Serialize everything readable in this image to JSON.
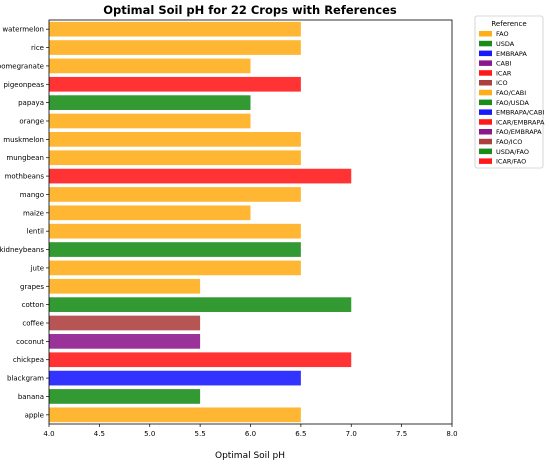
{
  "chart_data": {
    "type": "bar",
    "orientation": "horizontal",
    "title": "Optimal Soil pH for 22 Crops with References",
    "xlabel": "Optimal Soil pH",
    "ylabel": "",
    "xlim": [
      4.0,
      8.0
    ],
    "xticks": [
      "4.0",
      "4.5",
      "5.0",
      "5.5",
      "6.0",
      "6.5",
      "7.0",
      "7.5",
      "8.0"
    ],
    "grid": false,
    "legend_position": "right",
    "legend_title": "Reference",
    "legend": [
      {
        "label": "FAO",
        "color": "#FFA500"
      },
      {
        "label": "USDA",
        "color": "#008000"
      },
      {
        "label": "EMBRAPA",
        "color": "#0000FF"
      },
      {
        "label": "CABI",
        "color": "#800080"
      },
      {
        "label": "ICAR",
        "color": "#FF0000"
      },
      {
        "label": "ICO",
        "color": "#A52A2A"
      },
      {
        "label": "FAO/CABI",
        "color": "#FFA500"
      },
      {
        "label": "FAO/USDA",
        "color": "#008000"
      },
      {
        "label": "EMBRAPA/CABI",
        "color": "#0000FF"
      },
      {
        "label": "ICAR/EMBRAPA",
        "color": "#FF0000"
      },
      {
        "label": "FAO/EMBRAPA",
        "color": "#800080"
      },
      {
        "label": "FAO/ICO",
        "color": "#A52A2A"
      },
      {
        "label": "USDA/FAO",
        "color": "#008000"
      },
      {
        "label": "ICAR/FAO",
        "color": "#FF0000"
      }
    ],
    "categories": [
      "apple",
      "banana",
      "blackgram",
      "chickpea",
      "coconut",
      "coffee",
      "cotton",
      "grapes",
      "jute",
      "kidneybeans",
      "lentil",
      "maize",
      "mango",
      "mothbeans",
      "mungbean",
      "muskmelon",
      "orange",
      "papaya",
      "pigeonpeas",
      "pomegranate",
      "rice",
      "watermelon"
    ],
    "values": [
      6.5,
      5.5,
      6.5,
      7.0,
      5.5,
      5.5,
      7.0,
      5.5,
      6.5,
      6.5,
      6.5,
      6.0,
      6.5,
      7.0,
      6.5,
      6.5,
      6.0,
      6.0,
      6.5,
      6.0,
      6.5,
      6.5
    ],
    "colors": [
      "#FFA500",
      "#008000",
      "#0000FF",
      "#FF0000",
      "#800080",
      "#A52A2A",
      "#008000",
      "#FFA500",
      "#FFA500",
      "#008000",
      "#FFA500",
      "#FFA500",
      "#FFA500",
      "#FF0000",
      "#FFA500",
      "#FFA500",
      "#FFA500",
      "#008000",
      "#FF0000",
      "#FFA500",
      "#FFA500",
      "#FFA500"
    ]
  }
}
